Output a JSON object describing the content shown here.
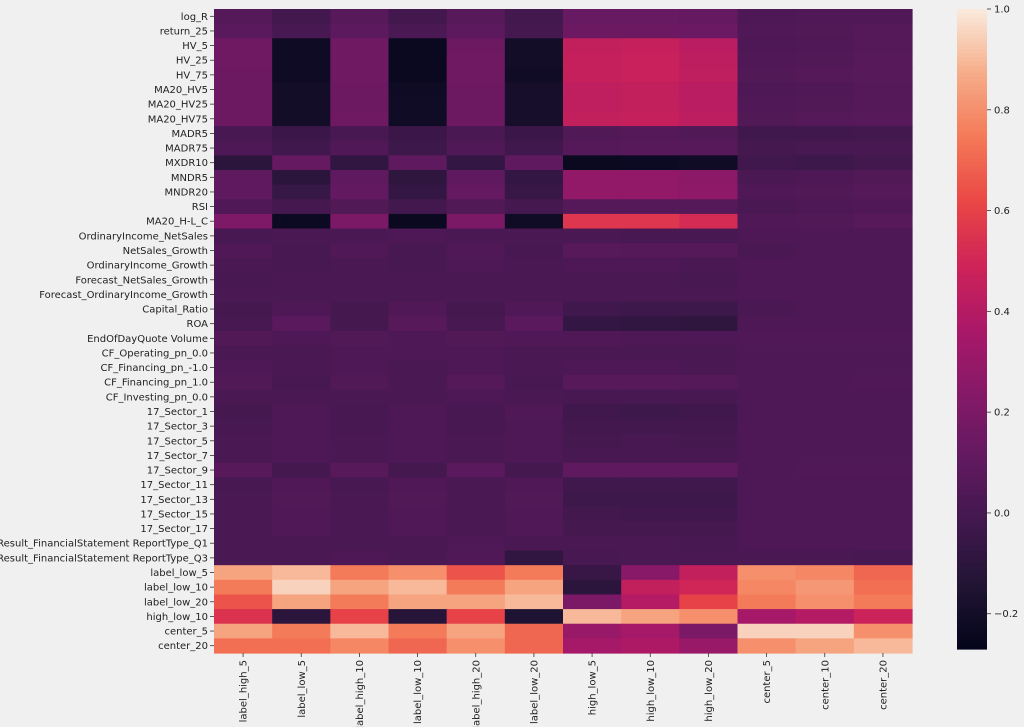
{
  "chart_data": {
    "type": "heatmap",
    "title": "",
    "xlabel": "",
    "ylabel": "",
    "rows": [
      "log_R",
      "return_25",
      "HV_5",
      "HV_25",
      "HV_75",
      "MA20_HV5",
      "MA20_HV25",
      "MA20_HV75",
      "MADR5",
      "MADR75",
      "MXDR10",
      "MNDR5",
      "MNDR20",
      "RSI",
      "MA20_H-L_C",
      "OrdinaryIncome_NetSales",
      "NetSales_Growth",
      "OrdinaryIncome_Growth",
      "Forecast_NetSales_Growth",
      "Forecast_OrdinaryIncome_Growth",
      "Capital_Ratio",
      "ROA",
      "EndOfDayQuote Volume",
      "CF_Operating_pn_0.0",
      "CF_Financing_pn_-1.0",
      "CF_Financing_pn_1.0",
      "CF_Investing_pn_0.0",
      "17_Sector_1",
      "17_Sector_3",
      "17_Sector_5",
      "17_Sector_7",
      "17_Sector_9",
      "17_Sector_11",
      "17_Sector_13",
      "17_Sector_15",
      "17_Sector_17",
      "Result_FinancialStatement ReportType_Q1",
      "Result_FinancialStatement ReportType_Q3",
      "label_low_5",
      "label_low_10",
      "label_low_20",
      "high_low_10",
      "center_5",
      "center_20"
    ],
    "columns": [
      "label_high_5",
      "label_low_5",
      "label_high_10",
      "label_low_10",
      "label_high_20",
      "label_low_20",
      "high_low_5",
      "high_low_10",
      "high_low_20",
      "center_5",
      "center_10",
      "center_20"
    ],
    "values": [
      [
        0.06,
        -0.01,
        0.07,
        -0.01,
        0.07,
        -0.01,
        0.13,
        0.13,
        0.12,
        0.03,
        0.04,
        0.04
      ],
      [
        0.08,
        0.01,
        0.09,
        0.02,
        0.09,
        0.0,
        0.15,
        0.15,
        0.14,
        0.04,
        0.05,
        0.06
      ],
      [
        0.16,
        -0.22,
        0.16,
        -0.24,
        0.15,
        -0.2,
        0.45,
        0.46,
        0.42,
        0.03,
        0.04,
        0.06
      ],
      [
        0.16,
        -0.22,
        0.16,
        -0.24,
        0.16,
        -0.2,
        0.46,
        0.47,
        0.43,
        0.04,
        0.05,
        0.07
      ],
      [
        0.15,
        -0.22,
        0.16,
        -0.24,
        0.16,
        -0.21,
        0.46,
        0.47,
        0.44,
        0.05,
        0.06,
        0.07
      ],
      [
        0.15,
        -0.2,
        0.15,
        -0.22,
        0.15,
        -0.19,
        0.44,
        0.45,
        0.42,
        0.03,
        0.04,
        0.06
      ],
      [
        0.15,
        -0.2,
        0.15,
        -0.21,
        0.15,
        -0.19,
        0.44,
        0.45,
        0.42,
        0.04,
        0.05,
        0.06
      ],
      [
        0.15,
        -0.2,
        0.16,
        -0.21,
        0.15,
        -0.19,
        0.45,
        0.46,
        0.43,
        0.05,
        0.06,
        0.07
      ],
      [
        0.01,
        -0.04,
        0.01,
        -0.04,
        0.02,
        -0.04,
        0.05,
        0.06,
        0.05,
        -0.02,
        -0.02,
        -0.01
      ],
      [
        0.03,
        -0.02,
        0.04,
        -0.03,
        0.04,
        -0.02,
        0.06,
        0.07,
        0.07,
        0.0,
        0.01,
        0.01
      ],
      [
        -0.1,
        0.12,
        -0.08,
        0.1,
        -0.07,
        0.1,
        -0.24,
        -0.23,
        -0.21,
        -0.02,
        -0.03,
        -0.01
      ],
      [
        0.1,
        -0.1,
        0.1,
        -0.09,
        0.1,
        -0.07,
        0.28,
        0.28,
        0.26,
        0.02,
        0.03,
        0.05
      ],
      [
        0.1,
        -0.06,
        0.11,
        -0.07,
        0.12,
        -0.05,
        0.28,
        0.28,
        0.27,
        0.04,
        0.05,
        0.06
      ],
      [
        0.04,
        0.0,
        0.05,
        -0.01,
        0.05,
        0.0,
        0.06,
        0.06,
        0.06,
        0.02,
        0.03,
        0.04
      ],
      [
        0.21,
        -0.23,
        0.2,
        -0.24,
        0.2,
        -0.21,
        0.56,
        0.56,
        0.52,
        0.04,
        0.05,
        0.07
      ],
      [
        0.01,
        0.02,
        0.02,
        0.03,
        0.02,
        0.02,
        0.02,
        0.01,
        0.01,
        0.03,
        0.03,
        0.03
      ],
      [
        0.04,
        0.01,
        0.04,
        0.01,
        0.04,
        0.01,
        0.07,
        0.06,
        0.06,
        0.02,
        0.03,
        0.03
      ],
      [
        0.02,
        0.01,
        0.02,
        0.01,
        0.03,
        0.02,
        0.03,
        0.03,
        0.02,
        0.03,
        0.03,
        0.03
      ],
      [
        0.01,
        0.02,
        0.02,
        0.02,
        0.02,
        0.02,
        0.02,
        0.02,
        0.01,
        0.03,
        0.03,
        0.03
      ],
      [
        0.02,
        0.02,
        0.02,
        0.02,
        0.02,
        0.02,
        0.02,
        0.02,
        0.02,
        0.03,
        0.03,
        0.03
      ],
      [
        0.0,
        0.03,
        0.0,
        0.04,
        0.0,
        0.04,
        -0.02,
        -0.03,
        -0.03,
        0.02,
        0.03,
        0.03
      ],
      [
        0.01,
        0.08,
        0.0,
        0.07,
        0.01,
        0.08,
        -0.07,
        -0.08,
        -0.09,
        0.03,
        0.03,
        0.03
      ],
      [
        0.05,
        0.03,
        0.05,
        0.03,
        0.05,
        0.04,
        0.04,
        0.03,
        0.03,
        0.04,
        0.04,
        0.04
      ],
      [
        0.02,
        0.02,
        0.03,
        0.03,
        0.03,
        0.02,
        0.02,
        0.02,
        0.02,
        0.03,
        0.03,
        0.03
      ],
      [
        0.03,
        0.02,
        0.03,
        0.02,
        0.03,
        0.02,
        0.03,
        0.03,
        0.02,
        0.03,
        0.03,
        0.03
      ],
      [
        0.05,
        0.01,
        0.05,
        0.02,
        0.06,
        0.01,
        0.07,
        0.07,
        0.06,
        0.03,
        0.03,
        0.04
      ],
      [
        0.02,
        0.02,
        0.02,
        0.02,
        0.03,
        0.02,
        0.01,
        0.01,
        0.01,
        0.03,
        0.03,
        0.03
      ],
      [
        0.0,
        0.03,
        0.01,
        0.03,
        0.01,
        0.04,
        -0.02,
        -0.03,
        -0.02,
        0.03,
        0.03,
        0.03
      ],
      [
        0.01,
        0.03,
        0.01,
        0.03,
        0.01,
        0.03,
        -0.01,
        -0.01,
        -0.01,
        0.03,
        0.03,
        0.03
      ],
      [
        0.02,
        0.03,
        0.02,
        0.03,
        0.02,
        0.03,
        0.0,
        0.01,
        0.0,
        0.03,
        0.03,
        0.03
      ],
      [
        0.02,
        0.03,
        0.02,
        0.03,
        0.02,
        0.03,
        0.01,
        0.01,
        0.01,
        0.03,
        0.03,
        0.03
      ],
      [
        0.07,
        0.0,
        0.07,
        0.0,
        0.08,
        0.0,
        0.1,
        0.1,
        0.1,
        0.03,
        0.04,
        0.04
      ],
      [
        0.01,
        0.04,
        0.01,
        0.04,
        0.02,
        0.04,
        -0.02,
        -0.02,
        -0.02,
        0.03,
        0.03,
        0.03
      ],
      [
        0.02,
        0.05,
        0.02,
        0.05,
        0.02,
        0.05,
        -0.03,
        -0.03,
        -0.03,
        0.03,
        0.03,
        0.03
      ],
      [
        0.02,
        0.04,
        0.02,
        0.04,
        0.02,
        0.04,
        -0.01,
        -0.02,
        -0.02,
        0.03,
        0.03,
        0.03
      ],
      [
        0.02,
        0.04,
        0.02,
        0.04,
        0.02,
        0.04,
        0.0,
        0.0,
        0.0,
        0.03,
        0.03,
        0.03
      ],
      [
        0.02,
        0.02,
        0.02,
        0.02,
        0.03,
        0.02,
        0.02,
        0.02,
        0.01,
        0.03,
        0.03,
        0.03
      ],
      [
        0.02,
        0.02,
        0.03,
        0.02,
        0.04,
        -0.08,
        0.01,
        0.02,
        0.02,
        0.02,
        0.02,
        0.01
      ],
      [
        0.85,
        0.9,
        0.75,
        0.8,
        0.65,
        0.75,
        -0.05,
        0.25,
        0.45,
        0.8,
        0.78,
        0.7
      ],
      [
        0.75,
        0.95,
        0.85,
        0.9,
        0.75,
        0.85,
        -0.1,
        0.45,
        0.5,
        0.78,
        0.82,
        0.72
      ],
      [
        0.65,
        0.85,
        0.75,
        0.85,
        0.85,
        0.9,
        0.2,
        0.4,
        0.6,
        0.75,
        0.8,
        0.75
      ],
      [
        0.55,
        -0.1,
        0.6,
        -0.12,
        0.6,
        -0.15,
        0.9,
        0.85,
        0.8,
        0.35,
        0.4,
        0.48
      ],
      [
        0.85,
        0.75,
        0.9,
        0.75,
        0.85,
        0.7,
        0.3,
        0.35,
        0.2,
        0.95,
        0.95,
        0.8
      ],
      [
        0.72,
        0.72,
        0.78,
        0.7,
        0.8,
        0.7,
        0.35,
        0.38,
        0.3,
        0.8,
        0.85,
        0.9
      ]
    ],
    "vmin": -0.27,
    "vmax": 1.0,
    "colormap": "rocket",
    "colorbar_ticks": [
      1.0,
      0.8,
      0.6,
      0.4,
      0.2,
      0.0,
      -0.2
    ],
    "colorbar_tick_labels": [
      "1.0",
      "0.8",
      "0.6",
      "0.4",
      "0.2",
      "0.0",
      "−0.2"
    ],
    "grid": false,
    "legend": "colorbar-right"
  }
}
